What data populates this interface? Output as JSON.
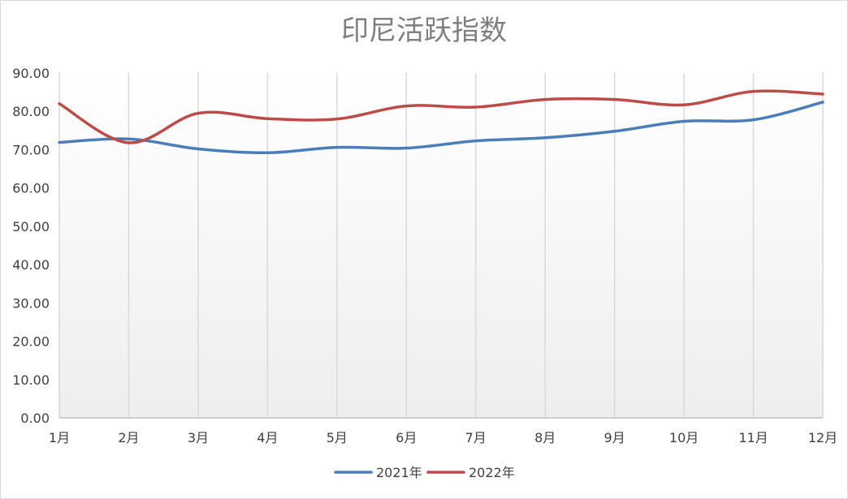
{
  "chart_data": {
    "type": "line",
    "title": "印尼活跃指数",
    "categories": [
      "1月",
      "2月",
      "3月",
      "4月",
      "5月",
      "6月",
      "7月",
      "8月",
      "9月",
      "10月",
      "11月",
      "12月"
    ],
    "ylim": [
      0,
      90
    ],
    "yticks": [
      "0.00",
      "10.00",
      "20.00",
      "30.00",
      "40.00",
      "50.00",
      "60.00",
      "70.00",
      "80.00",
      "90.00"
    ],
    "grid": "vertical",
    "legend_position": "bottom",
    "series": [
      {
        "name": "2021年",
        "color": "#4a7ebb",
        "values": [
          71.9,
          72.8,
          70.2,
          69.2,
          70.6,
          70.4,
          72.3,
          73.1,
          74.8,
          77.4,
          77.8,
          82.4
        ]
      },
      {
        "name": "2022年",
        "color": "#be4b48",
        "values": [
          82.0,
          71.8,
          79.5,
          78.1,
          78.0,
          81.4,
          81.1,
          83.1,
          83.1,
          81.7,
          85.2,
          84.5
        ]
      }
    ]
  }
}
